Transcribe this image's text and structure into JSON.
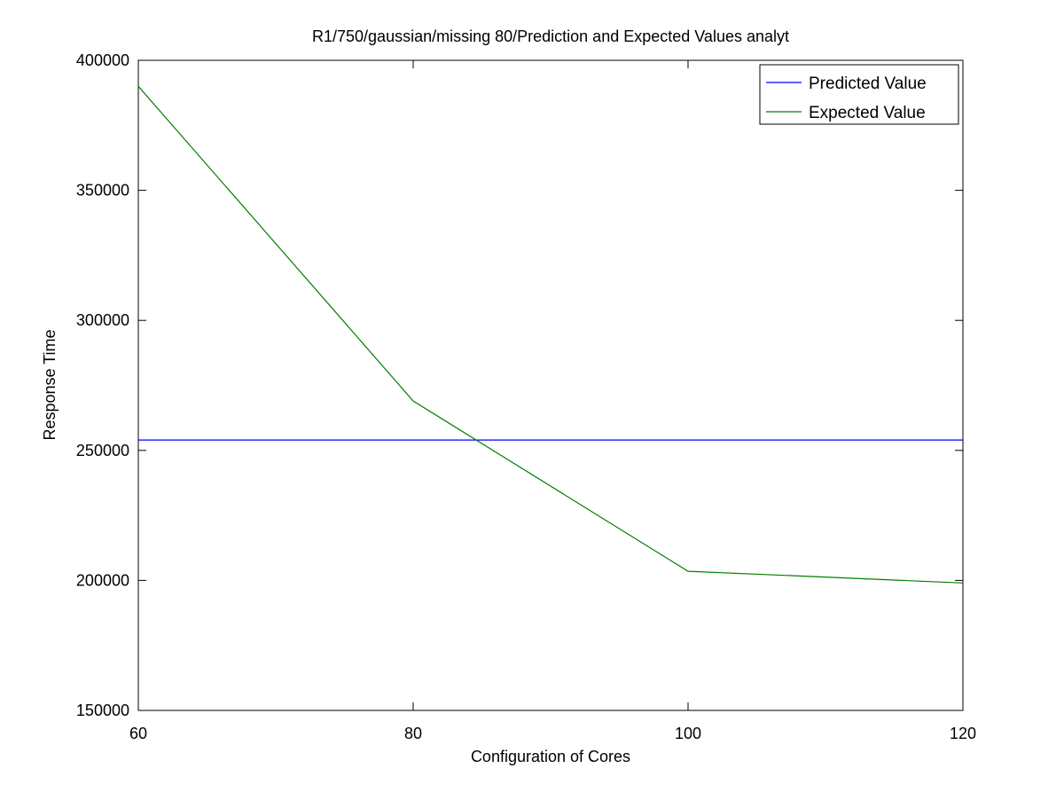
{
  "chart_data": {
    "type": "line",
    "title": "R1/750/gaussian/missing 80/Prediction and Expected Values analyt",
    "xlabel": "Configuration of Cores",
    "ylabel": "Response Time",
    "xlim": [
      60,
      120
    ],
    "ylim": [
      150000,
      400000
    ],
    "xticks": [
      60,
      80,
      100,
      120
    ],
    "yticks": [
      150000,
      200000,
      250000,
      300000,
      350000,
      400000
    ],
    "grid": false,
    "legend_position": "top-right",
    "series": [
      {
        "name": "Predicted Value",
        "color": "#0000ff",
        "x": [
          60,
          80,
          100,
          120
        ],
        "y": [
          254000,
          254000,
          254000,
          254000
        ]
      },
      {
        "name": "Expected Value",
        "color": "#008000",
        "x": [
          60,
          80,
          100,
          120
        ],
        "y": [
          390000,
          269000,
          203500,
          199000
        ]
      }
    ]
  }
}
